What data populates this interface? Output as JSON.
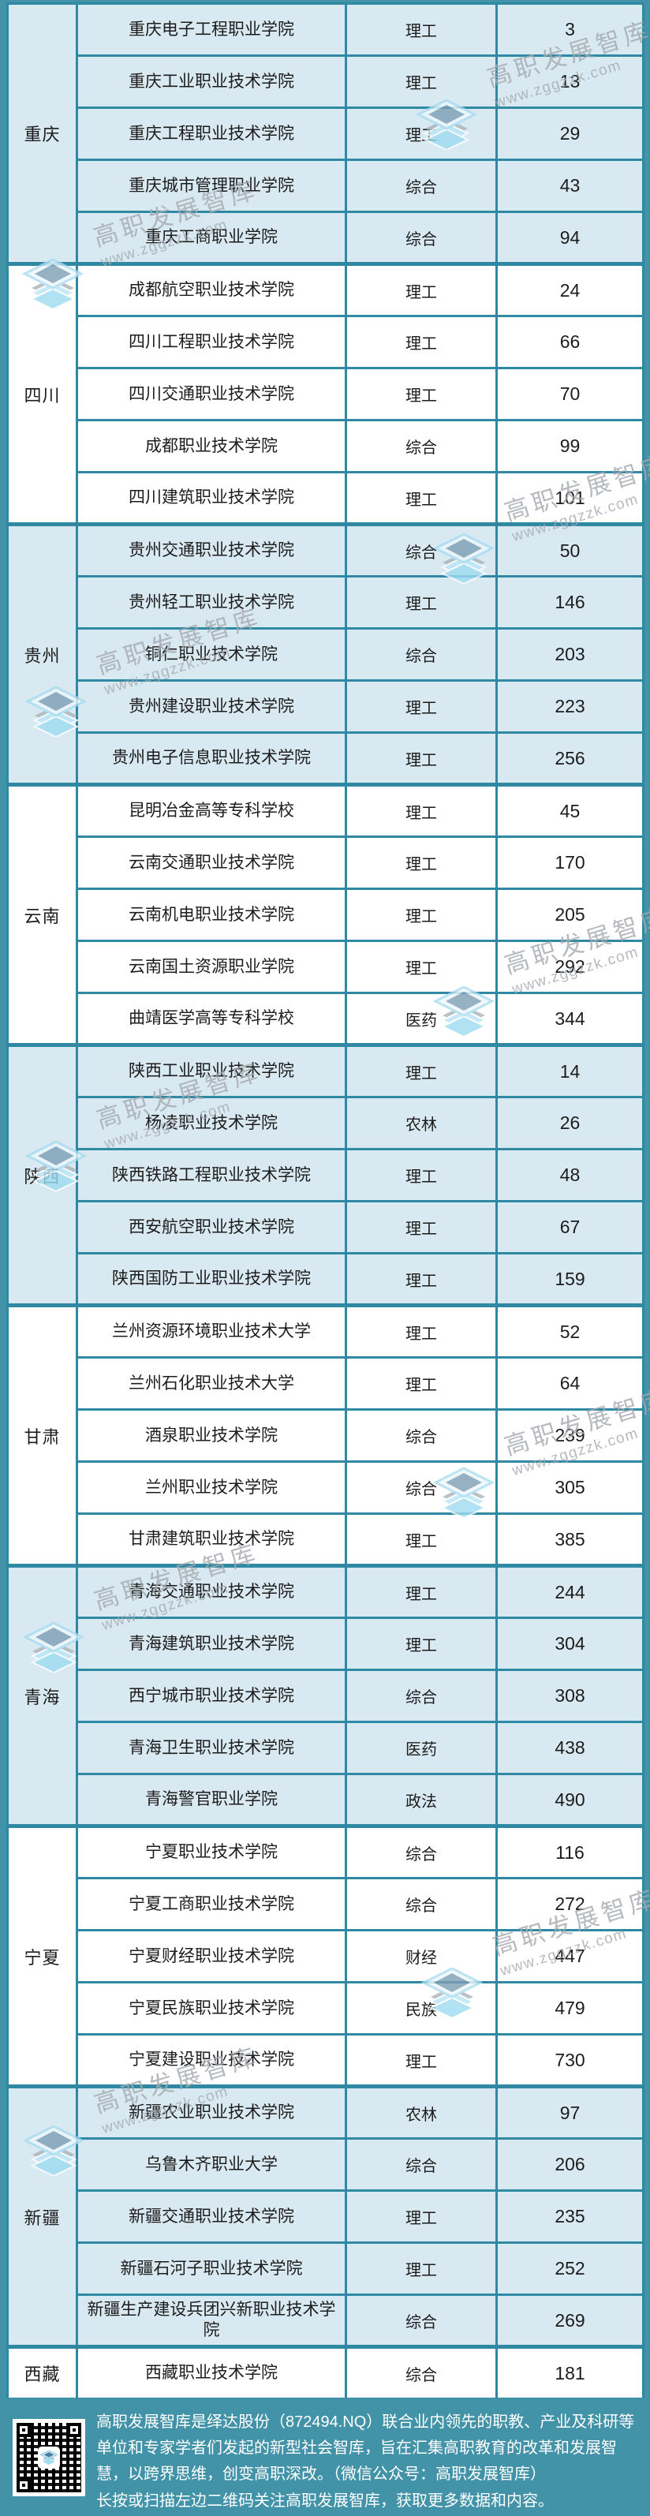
{
  "table": {
    "columns": [
      "province",
      "school",
      "category",
      "rank"
    ],
    "groups": [
      {
        "province": "重庆",
        "rows": [
          {
            "school": "重庆电子工程职业学院",
            "category": "理工",
            "rank": "3"
          },
          {
            "school": "重庆工业职业技术学院",
            "category": "理工",
            "rank": "13"
          },
          {
            "school": "重庆工程职业技术学院",
            "category": "理工",
            "rank": "29"
          },
          {
            "school": "重庆城市管理职业学院",
            "category": "综合",
            "rank": "43"
          },
          {
            "school": "重庆工商职业学院",
            "category": "综合",
            "rank": "94"
          }
        ]
      },
      {
        "province": "四川",
        "rows": [
          {
            "school": "成都航空职业技术学院",
            "category": "理工",
            "rank": "24"
          },
          {
            "school": "四川工程职业技术学院",
            "category": "理工",
            "rank": "66"
          },
          {
            "school": "四川交通职业技术学院",
            "category": "理工",
            "rank": "70"
          },
          {
            "school": "成都职业技术学院",
            "category": "综合",
            "rank": "99"
          },
          {
            "school": "四川建筑职业技术学院",
            "category": "理工",
            "rank": "101"
          }
        ]
      },
      {
        "province": "贵州",
        "rows": [
          {
            "school": "贵州交通职业技术学院",
            "category": "综合",
            "rank": "50"
          },
          {
            "school": "贵州轻工职业技术学院",
            "category": "理工",
            "rank": "146"
          },
          {
            "school": "铜仁职业技术学院",
            "category": "综合",
            "rank": "203"
          },
          {
            "school": "贵州建设职业技术学院",
            "category": "理工",
            "rank": "223"
          },
          {
            "school": "贵州电子信息职业技术学院",
            "category": "理工",
            "rank": "256"
          }
        ]
      },
      {
        "province": "云南",
        "rows": [
          {
            "school": "昆明冶金高等专科学校",
            "category": "理工",
            "rank": "45"
          },
          {
            "school": "云南交通职业技术学院",
            "category": "理工",
            "rank": "170"
          },
          {
            "school": "云南机电职业技术学院",
            "category": "理工",
            "rank": "205"
          },
          {
            "school": "云南国土资源职业学院",
            "category": "理工",
            "rank": "292"
          },
          {
            "school": "曲靖医学高等专科学校",
            "category": "医药",
            "rank": "344"
          }
        ]
      },
      {
        "province": "陕西",
        "rows": [
          {
            "school": "陕西工业职业技术学院",
            "category": "理工",
            "rank": "14"
          },
          {
            "school": "杨凌职业技术学院",
            "category": "农林",
            "rank": "26"
          },
          {
            "school": "陕西铁路工程职业技术学院",
            "category": "理工",
            "rank": "48"
          },
          {
            "school": "西安航空职业技术学院",
            "category": "理工",
            "rank": "67"
          },
          {
            "school": "陕西国防工业职业技术学院",
            "category": "理工",
            "rank": "159"
          }
        ]
      },
      {
        "province": "甘肃",
        "rows": [
          {
            "school": "兰州资源环境职业技术大学",
            "category": "理工",
            "rank": "52"
          },
          {
            "school": "兰州石化职业技术大学",
            "category": "理工",
            "rank": "64"
          },
          {
            "school": "酒泉职业技术学院",
            "category": "综合",
            "rank": "239"
          },
          {
            "school": "兰州职业技术学院",
            "category": "综合",
            "rank": "305"
          },
          {
            "school": "甘肃建筑职业技术学院",
            "category": "理工",
            "rank": "385"
          }
        ]
      },
      {
        "province": "青海",
        "rows": [
          {
            "school": "青海交通职业技术学院",
            "category": "理工",
            "rank": "244"
          },
          {
            "school": "青海建筑职业技术学院",
            "category": "理工",
            "rank": "304"
          },
          {
            "school": "西宁城市职业技术学院",
            "category": "综合",
            "rank": "308"
          },
          {
            "school": "青海卫生职业技术学院",
            "category": "医药",
            "rank": "438"
          },
          {
            "school": "青海警官职业学院",
            "category": "政法",
            "rank": "490"
          }
        ]
      },
      {
        "province": "宁夏",
        "rows": [
          {
            "school": "宁夏职业技术学院",
            "category": "综合",
            "rank": "116"
          },
          {
            "school": "宁夏工商职业技术学院",
            "category": "综合",
            "rank": "272"
          },
          {
            "school": "宁夏财经职业技术学院",
            "category": "财经",
            "rank": "447"
          },
          {
            "school": "宁夏民族职业技术学院",
            "category": "民族",
            "rank": "479"
          },
          {
            "school": "宁夏建设职业技术学院",
            "category": "理工",
            "rank": "730"
          }
        ]
      },
      {
        "province": "新疆",
        "rows": [
          {
            "school": "新疆农业职业技术学院",
            "category": "农林",
            "rank": "97"
          },
          {
            "school": "乌鲁木齐职业大学",
            "category": "综合",
            "rank": "206"
          },
          {
            "school": "新疆交通职业技术学院",
            "category": "理工",
            "rank": "235"
          },
          {
            "school": "新疆石河子职业技术学院",
            "category": "理工",
            "rank": "252"
          },
          {
            "school": "新疆生产建设兵团兴新职业技术学院",
            "category": "综合",
            "rank": "269"
          }
        ]
      },
      {
        "province": "西藏",
        "rows": [
          {
            "school": "西藏职业技术学院",
            "category": "综合",
            "rank": "181"
          }
        ]
      }
    ]
  },
  "watermark": {
    "brand": "高职发展智库",
    "site": "www.zggzzk.com"
  },
  "footer": {
    "about": "高职发展智库是绎达股份（872494.NQ）联合业内领先的职教、产业及科研等单位和专家学者们发起的新型社会智库，旨在汇集高职教育的改革和发展智慧，以跨界思维，创变高职深改。（微信公众号：高职发展智库）",
    "cta": "长按或扫描左边二维码关注高职发展智库，获取更多数据和内容。"
  },
  "colors": {
    "frame_teal": "#4292a8",
    "border_teal": "#2f89a2",
    "row_blue": "#d9e9f1",
    "row_white": "#ffffff",
    "footer_text": "#ffffff",
    "watermark_gray": "#a4aab0"
  }
}
